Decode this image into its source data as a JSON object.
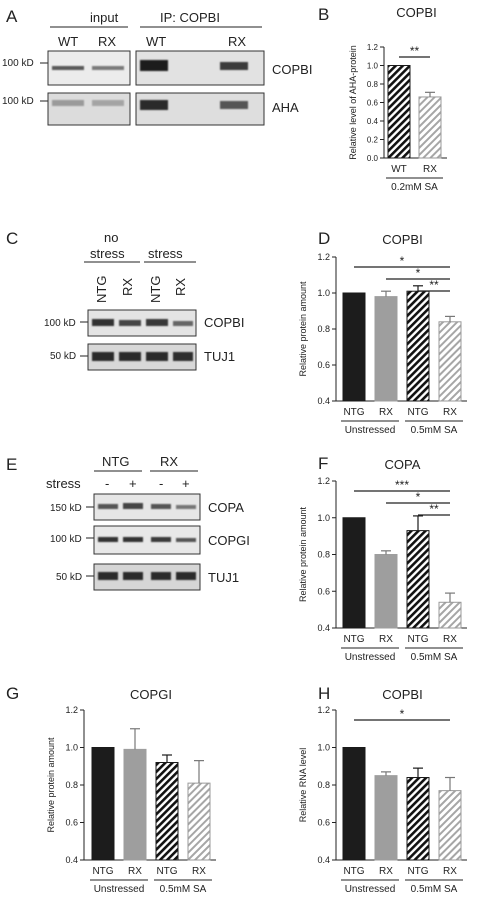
{
  "panels": {
    "A": {
      "letter": "A",
      "input_label": "input",
      "ip_label": "IP: COPBI",
      "lanes_input": [
        "WT",
        "RX"
      ],
      "lanes_ip": [
        "WT",
        "RX"
      ],
      "mw": [
        "100 kD",
        "100 kD"
      ],
      "bands": [
        "COPBI",
        "AHA"
      ]
    },
    "C": {
      "letter": "C",
      "group1": [
        "no",
        "stress"
      ],
      "group2": "stress",
      "lanes": [
        "NTG",
        "RX",
        "NTG",
        "RX"
      ],
      "mw": [
        "100 kD",
        "50 kD"
      ],
      "bands": [
        "COPBI",
        "TUJ1"
      ]
    },
    "E": {
      "letter": "E",
      "groups": [
        "NTG",
        "RX"
      ],
      "stress_label": "stress",
      "signs": [
        "-",
        "+",
        "-",
        "+"
      ],
      "mw": [
        "150 kD",
        "100 kD",
        "50 kD"
      ],
      "bands": [
        "COPA",
        "COPGI",
        "TUJ1"
      ]
    }
  },
  "chart_data": [
    {
      "panel": "B",
      "letter": "B",
      "type": "bar",
      "title": "COPBI",
      "ylabel": "Relative level of AHA-protein",
      "categories": [
        "WT",
        "RX"
      ],
      "values": [
        1.0,
        0.66
      ],
      "errors": [
        0,
        0.05
      ],
      "ylim": [
        0,
        1.2
      ],
      "yticks": [
        "0.0",
        "0.2",
        "0.4",
        "0.6",
        "0.8",
        "1.0",
        "1.2"
      ],
      "fills": [
        "hatch-black",
        "hatch-gray"
      ],
      "group_labels": [
        {
          "text": "0.2mM SA",
          "from": 0,
          "to": 1
        }
      ],
      "significance": [
        {
          "from": 0,
          "to": 1,
          "label": "**"
        }
      ]
    },
    {
      "panel": "D",
      "letter": "D",
      "type": "bar",
      "title": "COPBI",
      "ylabel": "Relative protein amount",
      "categories": [
        "NTG",
        "RX",
        "NTG",
        "RX"
      ],
      "values": [
        1.0,
        0.98,
        1.01,
        0.84
      ],
      "errors": [
        0,
        0.03,
        0.03,
        0.03
      ],
      "ylim": [
        0.4,
        1.2
      ],
      "yticks": [
        "0.4",
        "0.6",
        "0.8",
        "1.0",
        "1.2"
      ],
      "fills": [
        "#1c1c1c",
        "#9e9e9e",
        "hatch-black",
        "hatch-gray"
      ],
      "group_labels": [
        {
          "text": "Unstressed",
          "from": 0,
          "to": 1
        },
        {
          "text": "0.5mM SA",
          "from": 2,
          "to": 3
        }
      ],
      "significance": [
        {
          "from": 0,
          "to": 3,
          "label": "*"
        },
        {
          "from": 1,
          "to": 3,
          "label": "*"
        },
        {
          "from": 2,
          "to": 3,
          "label": "**"
        }
      ]
    },
    {
      "panel": "F",
      "letter": "F",
      "type": "bar",
      "title": "COPA",
      "ylabel": "Relative protein amount",
      "categories": [
        "NTG",
        "RX",
        "NTG",
        "RX"
      ],
      "values": [
        1.0,
        0.8,
        0.93,
        0.54
      ],
      "errors": [
        0,
        0.02,
        0.08,
        0.05
      ],
      "ylim": [
        0.4,
        1.2
      ],
      "yticks": [
        "0.4",
        "0.6",
        "0.8",
        "1.0",
        "1.2"
      ],
      "fills": [
        "#1c1c1c",
        "#9e9e9e",
        "hatch-black",
        "hatch-gray"
      ],
      "group_labels": [
        {
          "text": "Unstressed",
          "from": 0,
          "to": 1
        },
        {
          "text": "0.5mM SA",
          "from": 2,
          "to": 3
        }
      ],
      "significance": [
        {
          "from": 0,
          "to": 3,
          "label": "***"
        },
        {
          "from": 1,
          "to": 3,
          "label": "*"
        },
        {
          "from": 2,
          "to": 3,
          "label": "**"
        }
      ]
    },
    {
      "panel": "G",
      "letter": "G",
      "type": "bar",
      "title": "COPGI",
      "ylabel": "Relative protein amount",
      "categories": [
        "NTG",
        "RX",
        "NTG",
        "RX"
      ],
      "values": [
        1.0,
        0.99,
        0.92,
        0.81
      ],
      "errors": [
        0,
        0.11,
        0.04,
        0.12
      ],
      "ylim": [
        0.4,
        1.2
      ],
      "yticks": [
        "0.4",
        "0.6",
        "0.8",
        "1.0",
        "1.2"
      ],
      "fills": [
        "#1c1c1c",
        "#9e9e9e",
        "hatch-black",
        "hatch-gray"
      ],
      "group_labels": [
        {
          "text": "Unstressed",
          "from": 0,
          "to": 1
        },
        {
          "text": "0.5mM SA",
          "from": 2,
          "to": 3
        }
      ],
      "significance": []
    },
    {
      "panel": "H",
      "letter": "H",
      "type": "bar",
      "title": "COPBI",
      "ylabel": "Relative RNA level",
      "categories": [
        "NTG",
        "RX",
        "NTG",
        "RX"
      ],
      "values": [
        1.0,
        0.85,
        0.84,
        0.77
      ],
      "errors": [
        0,
        0.02,
        0.05,
        0.07
      ],
      "ylim": [
        0.4,
        1.2
      ],
      "yticks": [
        "0.4",
        "0.6",
        "0.8",
        "1.0",
        "1.2"
      ],
      "fills": [
        "#1c1c1c",
        "#9e9e9e",
        "hatch-black",
        "hatch-gray"
      ],
      "group_labels": [
        {
          "text": "Unstressed",
          "from": 0,
          "to": 1
        },
        {
          "text": "0.5mM SA",
          "from": 2,
          "to": 3
        }
      ],
      "significance": [
        {
          "from": 0,
          "to": 3,
          "label": "*"
        }
      ]
    }
  ]
}
